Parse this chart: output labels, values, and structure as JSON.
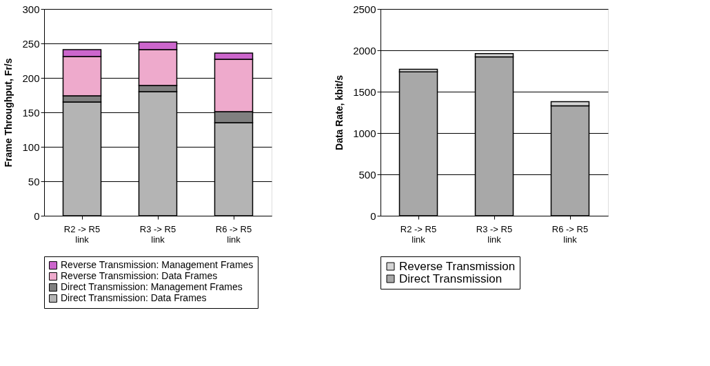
{
  "chart_data": [
    {
      "type": "bar",
      "stacked": true,
      "ylabel": "Frame Throughput, Fr/s",
      "categories": [
        "R2 -> R5 link",
        "R3 -> R5 link",
        "R6 -> R5 link"
      ],
      "ylim": [
        0,
        300
      ],
      "yticks": [
        0,
        50,
        100,
        150,
        200,
        250,
        300
      ],
      "grid": "y",
      "legend": "bottom",
      "series": [
        {
          "name": "Direct Transmission: Data Frames",
          "color": "#b4b4b4",
          "values": [
            165,
            180,
            135
          ]
        },
        {
          "name": "Direct Transmission: Management Frames",
          "color": "#808080",
          "values": [
            9,
            9,
            16
          ]
        },
        {
          "name": "Reverse Transmission: Data Frames",
          "color": "#eeaacc",
          "values": [
            57,
            52,
            76
          ]
        },
        {
          "name": "Reverse Transmission: Management Frames",
          "color": "#cc66cc",
          "values": [
            10,
            11,
            9
          ]
        }
      ]
    },
    {
      "type": "bar",
      "stacked": true,
      "ylabel": "Data Rate, kbit/s",
      "categories": [
        "R2 -> R5 link",
        "R3 -> R5 link",
        "R6 -> R5 link"
      ],
      "ylim": [
        0,
        2500
      ],
      "yticks": [
        0,
        500,
        1000,
        1500,
        2000,
        2500
      ],
      "grid": "y",
      "legend": "bottom",
      "series": [
        {
          "name": "Direct Transmission",
          "color": "#a8a8a8",
          "values": [
            1740,
            1920,
            1330
          ]
        },
        {
          "name": "Reverse Transmission",
          "color": "#d4d4d4",
          "values": [
            30,
            40,
            50
          ]
        }
      ]
    }
  ]
}
